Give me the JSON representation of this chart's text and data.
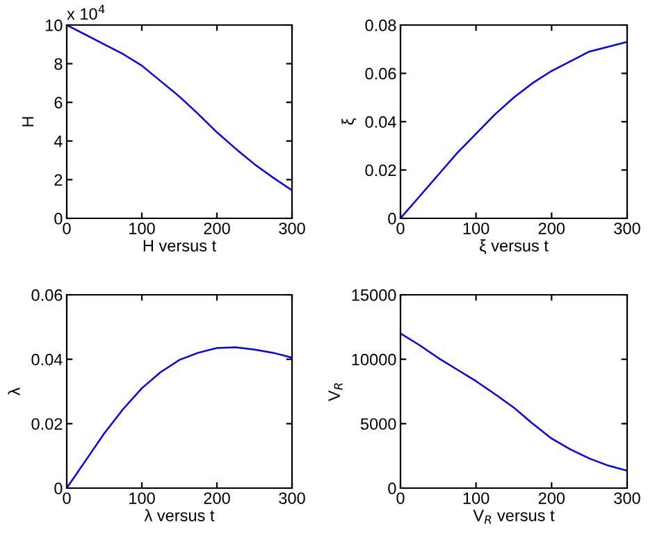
{
  "chart_data": [
    {
      "type": "line",
      "xlabel": "H versus t",
      "ylabel": "H",
      "annotations": [
        "x 10$^{4}$"
      ],
      "x": [
        0,
        25,
        50,
        75,
        100,
        125,
        150,
        175,
        200,
        225,
        250,
        275,
        300
      ],
      "series": [
        {
          "color": "#0000ff",
          "values": [
            10,
            9.5,
            9.0,
            8.5,
            7.9,
            7.1,
            6.3,
            5.4,
            4.45,
            3.6,
            2.8,
            2.1,
            1.45
          ]
        }
      ],
      "xlim": [
        0,
        300
      ],
      "xticks": [
        0,
        100,
        200,
        300
      ],
      "ylim": [
        0,
        10
      ],
      "yticks": [
        0,
        2,
        4,
        6,
        8,
        10
      ],
      "grid": false
    },
    {
      "type": "line",
      "xlabel": "ξ versus t",
      "ylabel": "ξ",
      "x": [
        0,
        25,
        50,
        75,
        100,
        125,
        150,
        175,
        200,
        225,
        250,
        275,
        300
      ],
      "series": [
        {
          "color": "#0000ff",
          "values": [
            0,
            0.009,
            0.018,
            0.027,
            0.035,
            0.043,
            0.05,
            0.056,
            0.061,
            0.065,
            0.069,
            0.071,
            0.073
          ]
        }
      ],
      "xlim": [
        0,
        300
      ],
      "xticks": [
        0,
        100,
        200,
        300
      ],
      "ylim": [
        0,
        0.08
      ],
      "yticks": [
        0,
        0.02,
        0.04,
        0.06,
        0.08
      ],
      "grid": false
    },
    {
      "type": "line",
      "xlabel": "λ versus t",
      "ylabel": "λ",
      "x": [
        0,
        25,
        50,
        75,
        100,
        125,
        150,
        175,
        200,
        225,
        250,
        275,
        300
      ],
      "series": [
        {
          "color": "#0000ff",
          "values": [
            0,
            0.0085,
            0.017,
            0.0245,
            0.031,
            0.036,
            0.0398,
            0.042,
            0.0435,
            0.0437,
            0.043,
            0.042,
            0.0405
          ]
        }
      ],
      "xlim": [
        0,
        300
      ],
      "xticks": [
        0,
        100,
        200,
        300
      ],
      "ylim": [
        0,
        0.06
      ],
      "yticks": [
        0,
        0.02,
        0.04,
        0.06
      ],
      "grid": false
    },
    {
      "type": "line",
      "xlabel": "V$_{R}$ versus t",
      "ylabel": "V$_{R}$",
      "x": [
        0,
        25,
        50,
        75,
        100,
        125,
        150,
        175,
        200,
        225,
        250,
        275,
        300
      ],
      "series": [
        {
          "color": "#0000ff",
          "values": [
            12000,
            11100,
            10100,
            9200,
            8300,
            7300,
            6250,
            5000,
            3850,
            3000,
            2300,
            1750,
            1350
          ]
        }
      ],
      "xlim": [
        0,
        300
      ],
      "xticks": [
        0,
        100,
        200,
        300
      ],
      "ylim": [
        0,
        15000
      ],
      "yticks": [
        0,
        5000,
        10000,
        15000
      ],
      "grid": false
    }
  ]
}
